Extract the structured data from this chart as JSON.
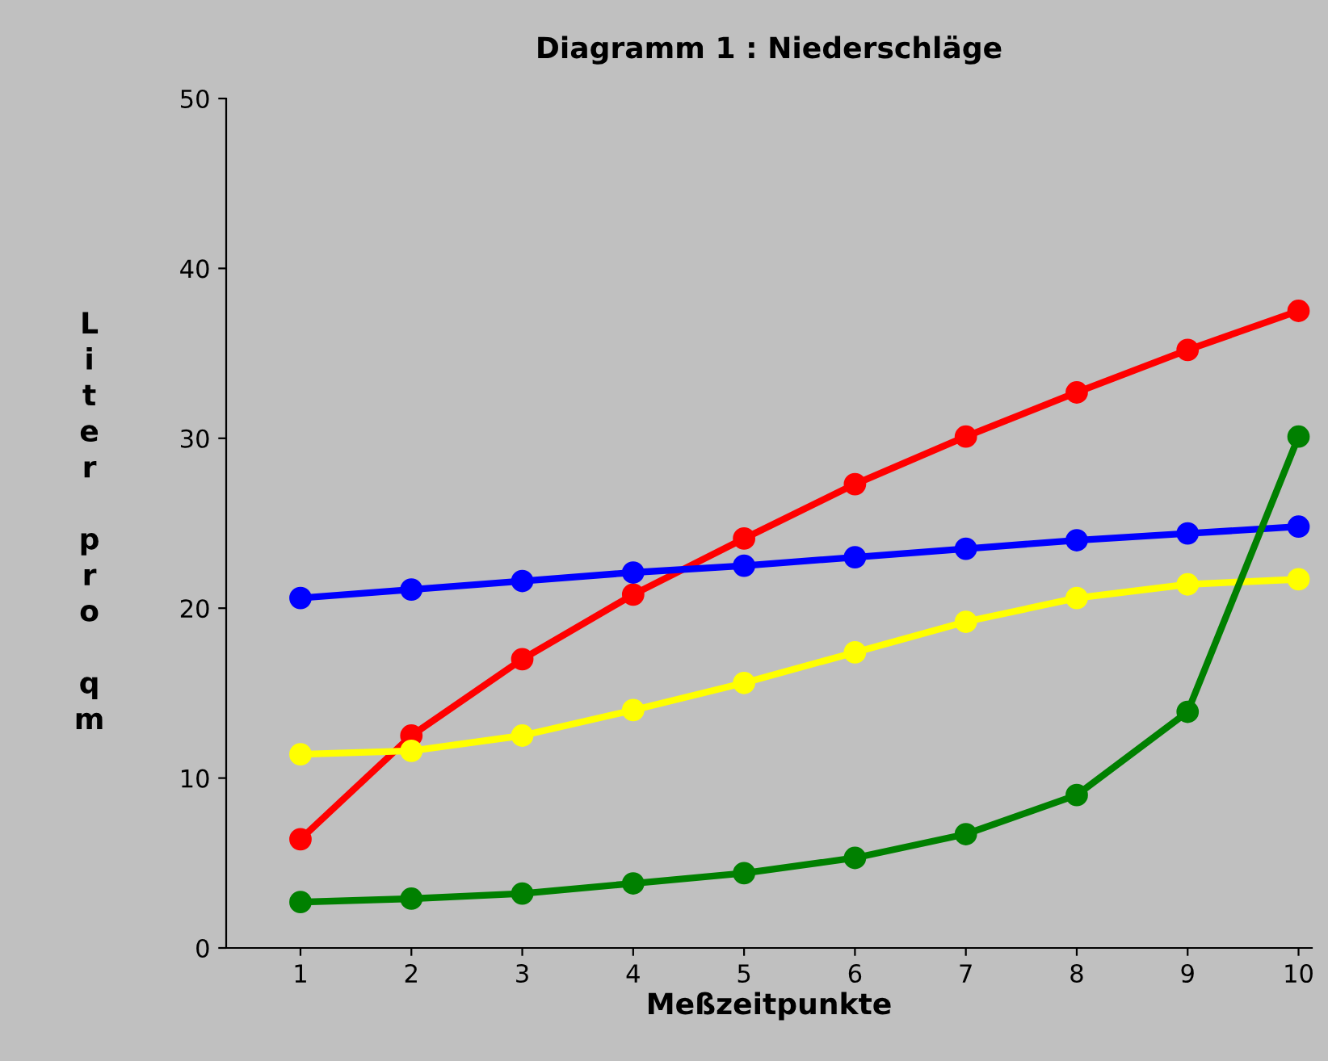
{
  "chart_data": {
    "type": "line",
    "title": "Diagramm 1 : Niederschläge",
    "xlabel": "Meßzeitpunkte",
    "ylabel": "Liter pro qm",
    "x": [
      1,
      2,
      3,
      4,
      5,
      6,
      7,
      8,
      9,
      10
    ],
    "series": [
      {
        "color": "#ff0000",
        "values": [
          6.4,
          12.5,
          17.0,
          20.8,
          24.1,
          27.3,
          30.1,
          32.7,
          35.2,
          37.5
        ]
      },
      {
        "color": "#0000ff",
        "values": [
          20.6,
          21.1,
          21.6,
          22.1,
          22.5,
          23.0,
          23.5,
          24.0,
          24.4,
          24.8
        ]
      },
      {
        "color": "#ffff00",
        "values": [
          11.4,
          11.6,
          12.5,
          14.0,
          15.6,
          17.4,
          19.2,
          20.6,
          21.4,
          21.7
        ]
      },
      {
        "color": "#008000",
        "values": [
          2.7,
          2.9,
          3.2,
          3.8,
          4.4,
          5.3,
          6.7,
          9.0,
          13.9,
          30.1
        ]
      }
    ],
    "xlim": [
      0.33,
      10.12
    ],
    "xticks": [
      1,
      2,
      3,
      4,
      5,
      6,
      7,
      8,
      9,
      10
    ],
    "ylim": [
      0,
      50
    ],
    "yticks": [
      0,
      10,
      20,
      30,
      40,
      50
    ],
    "grid": false,
    "legend": false,
    "marker": "circle",
    "line_style": "solid"
  }
}
